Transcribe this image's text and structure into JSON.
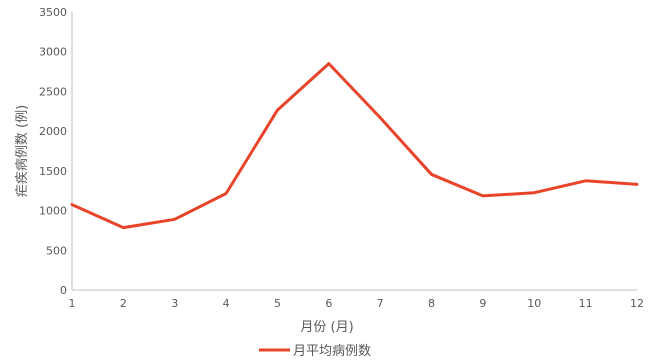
{
  "chart_data": {
    "type": "line",
    "title": "",
    "xlabel": "月份 (月)",
    "ylabel": "疟疾病例数 (例)",
    "x": [
      1,
      2,
      3,
      4,
      5,
      6,
      7,
      8,
      9,
      10,
      11,
      12
    ],
    "ylim": [
      0,
      3500
    ],
    "yticks": [
      0,
      500,
      1000,
      1500,
      2000,
      2500,
      3000,
      3500
    ],
    "grid": false,
    "legend_position": "bottom",
    "series": [
      {
        "name": "月平均病例数",
        "color": "#E8442A",
        "values": [
          1075,
          785,
          890,
          1215,
          2265,
          2850,
          2170,
          1455,
          1185,
          1225,
          1375,
          1330
        ]
      }
    ]
  }
}
